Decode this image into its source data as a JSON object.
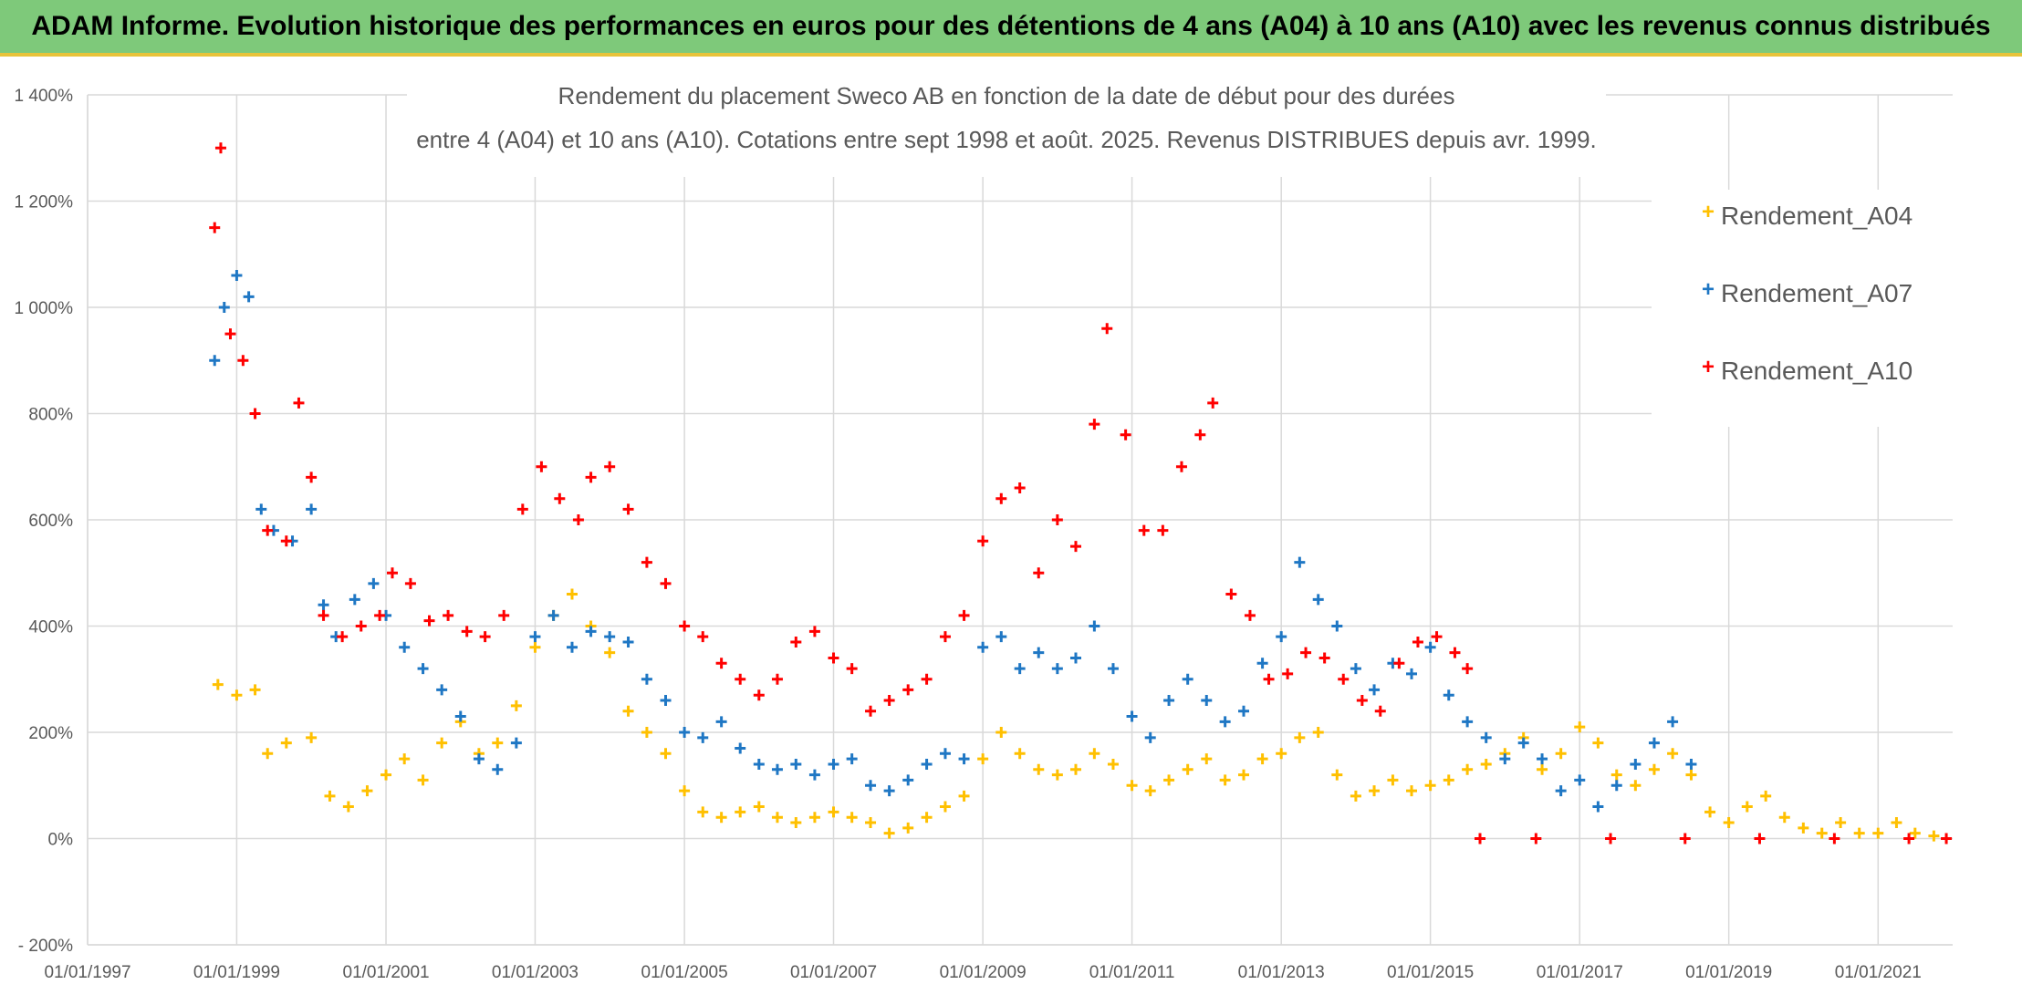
{
  "banner": {
    "text": "ADAM Informe. Evolution historique des performances en euros pour des détentions de 4 ans (A04) à 10 ans (A10) avec les revenus connus distribués"
  },
  "chart_data": {
    "type": "scatter",
    "title_line1": "Rendement du placement Sweco AB en fonction de la date de début pour des durées",
    "title_line2": "entre 4 (A04) et 10 ans (A10). Cotations entre sept 1998 et août. 2025. Revenus DISTRIBUES depuis avr. 1999.",
    "xlabel": "",
    "ylabel": "",
    "x_axis": {
      "type": "date",
      "range": [
        "1997-01-01",
        "2022-01-01"
      ],
      "tick_labels": [
        "01/01/1997",
        "01/01/1999",
        "01/01/2001",
        "01/01/2003",
        "01/01/2005",
        "01/01/2007",
        "01/01/2009",
        "01/01/2011",
        "01/01/2013",
        "01/01/2015",
        "01/01/2017",
        "01/01/2019",
        "01/01/2021"
      ]
    },
    "y_axis": {
      "unit": "%",
      "range": [
        -200,
        1400
      ],
      "tick_values": [
        -200,
        0,
        200,
        400,
        600,
        800,
        1000,
        1200,
        1400
      ],
      "tick_labels": [
        "- 200%",
        "0%",
        "200%",
        "400%",
        "600%",
        "800%",
        "1 000%",
        "1 200%",
        "1 400%"
      ]
    },
    "grid": true,
    "legend_position": "top-right",
    "marker": "+",
    "series": [
      {
        "name": "Rendement_A04",
        "color": "#ffc000",
        "points": [
          [
            "1998-10-01",
            290
          ],
          [
            "1999-01-01",
            270
          ],
          [
            "1999-04-01",
            280
          ],
          [
            "1999-06-01",
            160
          ],
          [
            "1999-09-01",
            180
          ],
          [
            "2000-01-01",
            190
          ],
          [
            "2000-04-01",
            80
          ],
          [
            "2000-07-01",
            60
          ],
          [
            "2000-10-01",
            90
          ],
          [
            "2001-01-01",
            120
          ],
          [
            "2001-04-01",
            150
          ],
          [
            "2001-07-01",
            110
          ],
          [
            "2001-10-01",
            180
          ],
          [
            "2002-01-01",
            220
          ],
          [
            "2002-04-01",
            160
          ],
          [
            "2002-07-01",
            180
          ],
          [
            "2002-10-01",
            250
          ],
          [
            "2003-01-01",
            360
          ],
          [
            "2003-04-01",
            420
          ],
          [
            "2003-07-01",
            460
          ],
          [
            "2003-10-01",
            400
          ],
          [
            "2004-01-01",
            350
          ],
          [
            "2004-04-01",
            240
          ],
          [
            "2004-07-01",
            200
          ],
          [
            "2004-10-01",
            160
          ],
          [
            "2005-01-01",
            90
          ],
          [
            "2005-04-01",
            50
          ],
          [
            "2005-07-01",
            40
          ],
          [
            "2005-10-01",
            50
          ],
          [
            "2006-01-01",
            60
          ],
          [
            "2006-04-01",
            40
          ],
          [
            "2006-07-01",
            30
          ],
          [
            "2006-10-01",
            40
          ],
          [
            "2007-01-01",
            50
          ],
          [
            "2007-04-01",
            40
          ],
          [
            "2007-07-01",
            30
          ],
          [
            "2007-10-01",
            10
          ],
          [
            "2008-01-01",
            20
          ],
          [
            "2008-04-01",
            40
          ],
          [
            "2008-07-01",
            60
          ],
          [
            "2008-10-01",
            80
          ],
          [
            "2009-01-01",
            150
          ],
          [
            "2009-04-01",
            200
          ],
          [
            "2009-07-01",
            160
          ],
          [
            "2009-10-01",
            130
          ],
          [
            "2010-01-01",
            120
          ],
          [
            "2010-04-01",
            130
          ],
          [
            "2010-07-01",
            160
          ],
          [
            "2010-10-01",
            140
          ],
          [
            "2011-01-01",
            100
          ],
          [
            "2011-04-01",
            90
          ],
          [
            "2011-07-01",
            110
          ],
          [
            "2011-10-01",
            130
          ],
          [
            "2012-01-01",
            150
          ],
          [
            "2012-04-01",
            110
          ],
          [
            "2012-07-01",
            120
          ],
          [
            "2012-10-01",
            150
          ],
          [
            "2013-01-01",
            160
          ],
          [
            "2013-04-01",
            190
          ],
          [
            "2013-07-01",
            200
          ],
          [
            "2013-10-01",
            120
          ],
          [
            "2014-01-01",
            80
          ],
          [
            "2014-04-01",
            90
          ],
          [
            "2014-07-01",
            110
          ],
          [
            "2014-10-01",
            90
          ],
          [
            "2015-01-01",
            100
          ],
          [
            "2015-04-01",
            110
          ],
          [
            "2015-07-01",
            130
          ],
          [
            "2015-10-01",
            140
          ],
          [
            "2016-01-01",
            160
          ],
          [
            "2016-04-01",
            190
          ],
          [
            "2016-07-01",
            130
          ],
          [
            "2016-10-01",
            160
          ],
          [
            "2017-01-01",
            210
          ],
          [
            "2017-04-01",
            180
          ],
          [
            "2017-07-01",
            120
          ],
          [
            "2017-10-01",
            100
          ],
          [
            "2018-01-01",
            130
          ],
          [
            "2018-04-01",
            160
          ],
          [
            "2018-07-01",
            120
          ],
          [
            "2018-10-01",
            50
          ],
          [
            "2019-01-01",
            30
          ],
          [
            "2019-04-01",
            60
          ],
          [
            "2019-07-01",
            80
          ],
          [
            "2019-10-01",
            40
          ],
          [
            "2020-01-01",
            20
          ],
          [
            "2020-04-01",
            10
          ],
          [
            "2020-07-01",
            30
          ],
          [
            "2020-10-01",
            10
          ],
          [
            "2021-01-01",
            10
          ],
          [
            "2021-04-01",
            30
          ],
          [
            "2021-07-01",
            10
          ],
          [
            "2021-10-01",
            5
          ]
        ]
      },
      {
        "name": "Rendement_A07",
        "color": "#1f77c4",
        "points": [
          [
            "1998-09-15",
            900
          ],
          [
            "1998-11-01",
            1000
          ],
          [
            "1999-01-01",
            1060
          ],
          [
            "1999-03-01",
            1020
          ],
          [
            "1999-05-01",
            620
          ],
          [
            "1999-07-01",
            580
          ],
          [
            "1999-10-01",
            560
          ],
          [
            "2000-01-01",
            620
          ],
          [
            "2000-03-01",
            440
          ],
          [
            "2000-05-01",
            380
          ],
          [
            "2000-08-01",
            450
          ],
          [
            "2000-11-01",
            480
          ],
          [
            "2001-01-01",
            420
          ],
          [
            "2001-04-01",
            360
          ],
          [
            "2001-07-01",
            320
          ],
          [
            "2001-10-01",
            280
          ],
          [
            "2002-01-01",
            230
          ],
          [
            "2002-04-01",
            150
          ],
          [
            "2002-07-01",
            130
          ],
          [
            "2002-10-01",
            180
          ],
          [
            "2003-01-01",
            380
          ],
          [
            "2003-04-01",
            420
          ],
          [
            "2003-07-01",
            360
          ],
          [
            "2003-10-01",
            390
          ],
          [
            "2004-01-01",
            380
          ],
          [
            "2004-04-01",
            370
          ],
          [
            "2004-07-01",
            300
          ],
          [
            "2004-10-01",
            260
          ],
          [
            "2005-01-01",
            200
          ],
          [
            "2005-04-01",
            190
          ],
          [
            "2005-07-01",
            220
          ],
          [
            "2005-10-01",
            170
          ],
          [
            "2006-01-01",
            140
          ],
          [
            "2006-04-01",
            130
          ],
          [
            "2006-07-01",
            140
          ],
          [
            "2006-10-01",
            120
          ],
          [
            "2007-01-01",
            140
          ],
          [
            "2007-04-01",
            150
          ],
          [
            "2007-07-01",
            100
          ],
          [
            "2007-10-01",
            90
          ],
          [
            "2008-01-01",
            110
          ],
          [
            "2008-04-01",
            140
          ],
          [
            "2008-07-01",
            160
          ],
          [
            "2008-10-01",
            150
          ],
          [
            "2009-01-01",
            360
          ],
          [
            "2009-04-01",
            380
          ],
          [
            "2009-07-01",
            320
          ],
          [
            "2009-10-01",
            350
          ],
          [
            "2010-01-01",
            320
          ],
          [
            "2010-04-01",
            340
          ],
          [
            "2010-07-01",
            400
          ],
          [
            "2010-10-01",
            320
          ],
          [
            "2011-01-01",
            230
          ],
          [
            "2011-04-01",
            190
          ],
          [
            "2011-07-01",
            260
          ],
          [
            "2011-10-01",
            300
          ],
          [
            "2012-01-01",
            260
          ],
          [
            "2012-04-01",
            220
          ],
          [
            "2012-07-01",
            240
          ],
          [
            "2012-10-01",
            330
          ],
          [
            "2013-01-01",
            380
          ],
          [
            "2013-04-01",
            520
          ],
          [
            "2013-07-01",
            450
          ],
          [
            "2013-10-01",
            400
          ],
          [
            "2014-01-01",
            320
          ],
          [
            "2014-04-01",
            280
          ],
          [
            "2014-07-01",
            330
          ],
          [
            "2014-10-01",
            310
          ],
          [
            "2015-01-01",
            360
          ],
          [
            "2015-04-01",
            270
          ],
          [
            "2015-07-01",
            220
          ],
          [
            "2015-10-01",
            190
          ],
          [
            "2016-01-01",
            150
          ],
          [
            "2016-04-01",
            180
          ],
          [
            "2016-07-01",
            150
          ],
          [
            "2016-10-01",
            90
          ],
          [
            "2017-01-01",
            110
          ],
          [
            "2017-04-01",
            60
          ],
          [
            "2017-07-01",
            100
          ],
          [
            "2017-10-01",
            140
          ],
          [
            "2018-01-01",
            180
          ],
          [
            "2018-04-01",
            220
          ],
          [
            "2018-07-01",
            140
          ]
        ]
      },
      {
        "name": "Rendement_A10",
        "color": "#ff0000",
        "points": [
          [
            "1998-09-15",
            1150
          ],
          [
            "1998-10-15",
            1300
          ],
          [
            "1998-12-01",
            950
          ],
          [
            "1999-02-01",
            900
          ],
          [
            "1999-04-01",
            800
          ],
          [
            "1999-06-01",
            580
          ],
          [
            "1999-09-01",
            560
          ],
          [
            "1999-11-01",
            820
          ],
          [
            "2000-01-01",
            680
          ],
          [
            "2000-03-01",
            420
          ],
          [
            "2000-06-01",
            380
          ],
          [
            "2000-09-01",
            400
          ],
          [
            "2000-12-01",
            420
          ],
          [
            "2001-02-01",
            500
          ],
          [
            "2001-05-01",
            480
          ],
          [
            "2001-08-01",
            410
          ],
          [
            "2001-11-01",
            420
          ],
          [
            "2002-02-01",
            390
          ],
          [
            "2002-05-01",
            380
          ],
          [
            "2002-08-01",
            420
          ],
          [
            "2002-11-01",
            620
          ],
          [
            "2003-02-01",
            700
          ],
          [
            "2003-05-01",
            640
          ],
          [
            "2003-08-01",
            600
          ],
          [
            "2003-10-01",
            680
          ],
          [
            "2004-01-01",
            700
          ],
          [
            "2004-04-01",
            620
          ],
          [
            "2004-07-01",
            520
          ],
          [
            "2004-10-01",
            480
          ],
          [
            "2005-01-01",
            400
          ],
          [
            "2005-04-01",
            380
          ],
          [
            "2005-07-01",
            330
          ],
          [
            "2005-10-01",
            300
          ],
          [
            "2006-01-01",
            270
          ],
          [
            "2006-04-01",
            300
          ],
          [
            "2006-07-01",
            370
          ],
          [
            "2006-10-01",
            390
          ],
          [
            "2007-01-01",
            340
          ],
          [
            "2007-04-01",
            320
          ],
          [
            "2007-07-01",
            240
          ],
          [
            "2007-10-01",
            260
          ],
          [
            "2008-01-01",
            280
          ],
          [
            "2008-04-01",
            300
          ],
          [
            "2008-07-01",
            380
          ],
          [
            "2008-10-01",
            420
          ],
          [
            "2009-01-01",
            560
          ],
          [
            "2009-04-01",
            640
          ],
          [
            "2009-07-01",
            660
          ],
          [
            "2009-10-01",
            500
          ],
          [
            "2010-01-01",
            600
          ],
          [
            "2010-04-01",
            550
          ],
          [
            "2010-07-01",
            780
          ],
          [
            "2010-09-01",
            960
          ],
          [
            "2010-12-01",
            760
          ],
          [
            "2011-03-01",
            580
          ],
          [
            "2011-06-01",
            580
          ],
          [
            "2011-09-01",
            700
          ],
          [
            "2011-12-01",
            760
          ],
          [
            "2012-02-01",
            820
          ],
          [
            "2012-05-01",
            460
          ],
          [
            "2012-08-01",
            420
          ],
          [
            "2012-11-01",
            300
          ],
          [
            "2013-02-01",
            310
          ],
          [
            "2013-05-01",
            350
          ],
          [
            "2013-08-01",
            340
          ],
          [
            "2013-11-01",
            300
          ],
          [
            "2014-02-01",
            260
          ],
          [
            "2014-05-01",
            240
          ],
          [
            "2014-08-01",
            330
          ],
          [
            "2014-11-01",
            370
          ],
          [
            "2015-02-01",
            380
          ],
          [
            "2015-05-01",
            350
          ],
          [
            "2015-07-01",
            320
          ],
          [
            "2015-09-01",
            0
          ],
          [
            "2016-06-01",
            0
          ],
          [
            "2017-06-01",
            0
          ],
          [
            "2018-06-01",
            0
          ],
          [
            "2019-06-01",
            0
          ],
          [
            "2020-06-01",
            0
          ],
          [
            "2021-06-01",
            0
          ],
          [
            "2021-12-01",
            0
          ]
        ]
      }
    ]
  }
}
